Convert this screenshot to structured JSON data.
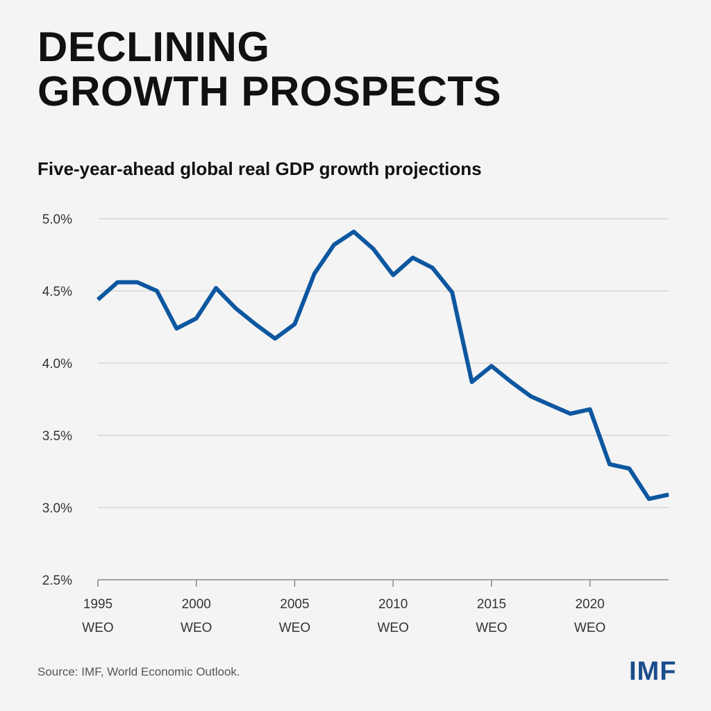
{
  "header": {
    "title_line1": "DECLINING",
    "title_line2": "GROWTH PROSPECTS",
    "subtitle": "Five-year-ahead global real GDP growth projections"
  },
  "footer": {
    "source": "Source: IMF, World Economic Outlook.",
    "logo": "IMF"
  },
  "colors": {
    "line": "#0d57a0",
    "background": "#f4f4f4",
    "grid": "#d6d6d6",
    "logo": "#1b4d8c"
  },
  "chart_data": {
    "type": "line",
    "title": "Five-year-ahead global real GDP growth projections",
    "xlabel": "",
    "ylabel": "",
    "ylim": [
      2.5,
      5.0
    ],
    "xlim": [
      1995,
      2024
    ],
    "grid": true,
    "y_ticks": [
      "5.0%",
      "4.5%",
      "4.0%",
      "3.5%",
      "3.0%",
      "2.5%"
    ],
    "y_tick_values": [
      5.0,
      4.5,
      4.0,
      3.5,
      3.0,
      2.5
    ],
    "x_ticks": [
      {
        "year": 1995,
        "line1": "1995",
        "line2": "WEO"
      },
      {
        "year": 2000,
        "line1": "2000",
        "line2": "WEO"
      },
      {
        "year": 2005,
        "line1": "2005",
        "line2": "WEO"
      },
      {
        "year": 2010,
        "line1": "2010",
        "line2": "WEO"
      },
      {
        "year": 2015,
        "line1": "2015",
        "line2": "WEO"
      },
      {
        "year": 2020,
        "line1": "2020",
        "line2": "WEO"
      }
    ],
    "x": [
      1995,
      1996,
      1997,
      1998,
      1999,
      2000,
      2001,
      2002,
      2003,
      2004,
      2005,
      2006,
      2007,
      2008,
      2009,
      2010,
      2011,
      2012,
      2013,
      2014,
      2015,
      2016,
      2017,
      2018,
      2019,
      2020,
      2021,
      2022,
      2023,
      2024
    ],
    "values": [
      4.44,
      4.56,
      4.56,
      4.5,
      4.24,
      4.31,
      4.52,
      4.38,
      4.27,
      4.17,
      4.27,
      4.62,
      4.82,
      4.91,
      4.79,
      4.61,
      4.73,
      4.66,
      4.49,
      3.87,
      3.98,
      3.87,
      3.77,
      3.71,
      3.65,
      3.68,
      3.3,
      3.27,
      3.06,
      3.09
    ]
  }
}
